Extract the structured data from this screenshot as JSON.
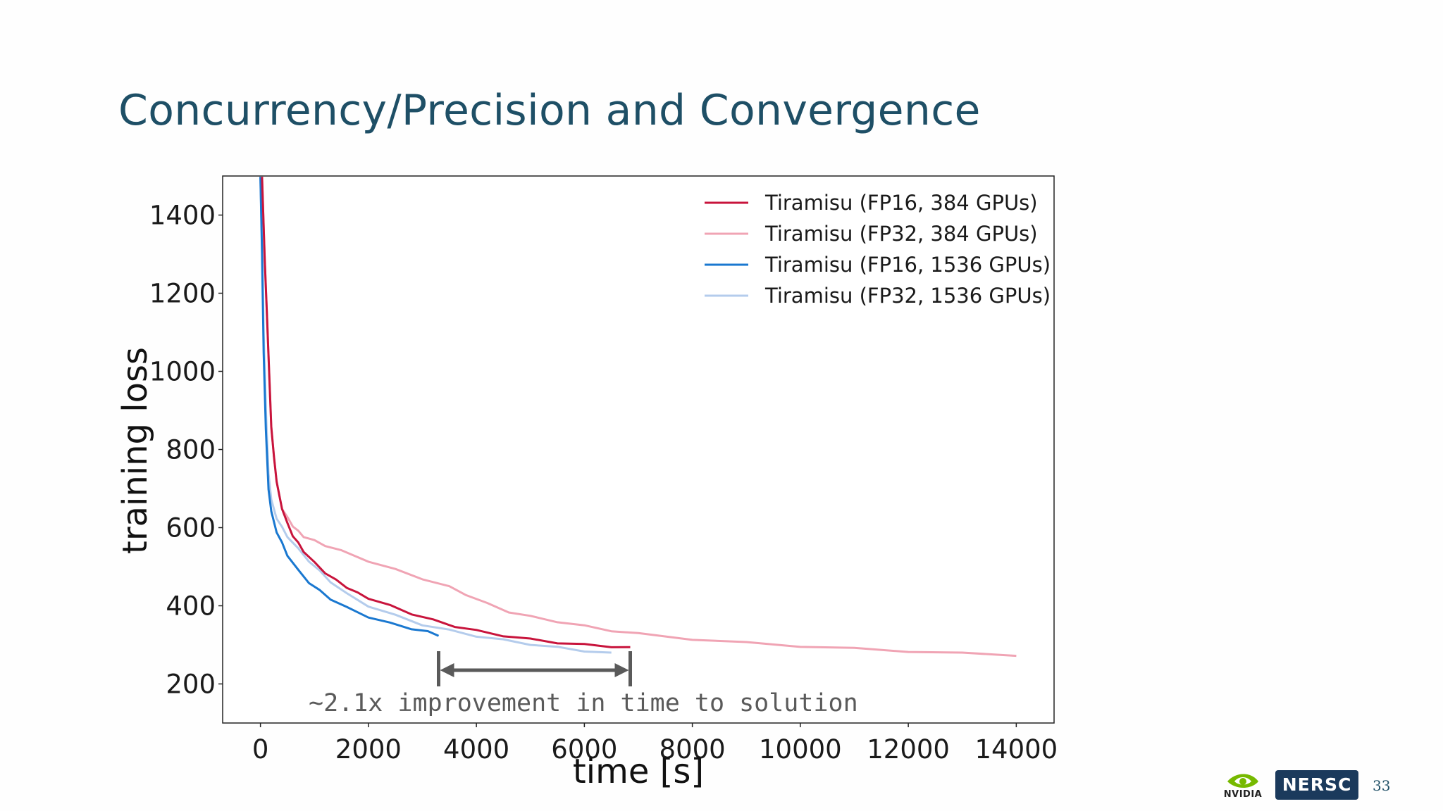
{
  "slide": {
    "title": "Concurrency/Precision and Convergence",
    "page_number": "33",
    "logos": {
      "left": {
        "name": "nvidia-icon",
        "text": "NVIDIA"
      },
      "right": {
        "name": "nersc-icon",
        "text": "NERSC"
      }
    }
  },
  "chart_data": {
    "type": "line",
    "title": "",
    "xlabel": "time [s]",
    "ylabel": "training loss",
    "xlim": [
      -700,
      14700
    ],
    "ylim": [
      100,
      1500
    ],
    "xticks": [
      0,
      2000,
      4000,
      6000,
      8000,
      10000,
      12000,
      14000
    ],
    "yticks": [
      200,
      400,
      600,
      800,
      1000,
      1200,
      1400
    ],
    "grid": false,
    "legend_position": "top-right",
    "series": [
      {
        "name": "Tiramisu (FP16, 384 GPUs)",
        "color": "#c8143c",
        "x": [
          30,
          80,
          120,
          160,
          200,
          250,
          300,
          350,
          400,
          500,
          600,
          700,
          800,
          1000,
          1200,
          1400,
          1600,
          1800,
          2000,
          2400,
          2800,
          3200,
          3600,
          4000,
          4500,
          5000,
          5500,
          6000,
          6500,
          6850
        ],
        "y": [
          1500,
          1280,
          1150,
          1000,
          860,
          780,
          720,
          680,
          650,
          610,
          580,
          560,
          540,
          510,
          485,
          465,
          448,
          432,
          420,
          400,
          380,
          363,
          348,
          336,
          324,
          314,
          306,
          300,
          296,
          292
        ]
      },
      {
        "name": "Tiramisu (FP32, 384 GPUs)",
        "color": "#f0a4b4",
        "x": [
          30,
          80,
          120,
          160,
          200,
          250,
          300,
          350,
          400,
          500,
          600,
          700,
          800,
          1000,
          1200,
          1500,
          2000,
          2500,
          3000,
          3500,
          3800,
          4200,
          4600,
          5000,
          5500,
          6000,
          6500,
          7000,
          8000,
          9000,
          10000,
          11000,
          12000,
          13000,
          14000
        ],
        "y": [
          1500,
          1280,
          1150,
          1000,
          860,
          780,
          720,
          680,
          650,
          625,
          605,
          590,
          578,
          566,
          555,
          540,
          515,
          492,
          470,
          448,
          430,
          405,
          385,
          372,
          360,
          348,
          337,
          328,
          315,
          305,
          297,
          290,
          284,
          278,
          274
        ]
      },
      {
        "name": "Tiramisu (FP16, 1536 GPUs)",
        "color": "#1a78d0",
        "x": [
          0,
          30,
          60,
          100,
          150,
          200,
          300,
          400,
          500,
          700,
          900,
          1100,
          1300,
          1600,
          2000,
          2400,
          2800,
          3100,
          3300
        ],
        "y": [
          1500,
          1300,
          1050,
          850,
          700,
          640,
          590,
          560,
          530,
          490,
          460,
          438,
          418,
          395,
          372,
          355,
          342,
          333,
          325
        ]
      },
      {
        "name": "Tiramisu (FP32, 1536 GPUs)",
        "color": "#b4ccec",
        "x": [
          0,
          30,
          60,
          100,
          150,
          200,
          300,
          400,
          500,
          700,
          900,
          1100,
          1300,
          1600,
          2000,
          2500,
          3000,
          3500,
          4000,
          4500,
          5000,
          5500,
          6000,
          6500
        ],
        "y": [
          1500,
          1320,
          1100,
          900,
          740,
          670,
          625,
          600,
          578,
          545,
          515,
          488,
          462,
          430,
          400,
          375,
          352,
          337,
          323,
          312,
          302,
          293,
          285,
          278
        ]
      }
    ],
    "annotation": {
      "text": "~2.1x improvement in time to solution",
      "arrow_from_x": 3300,
      "arrow_to_x": 6850
    }
  }
}
